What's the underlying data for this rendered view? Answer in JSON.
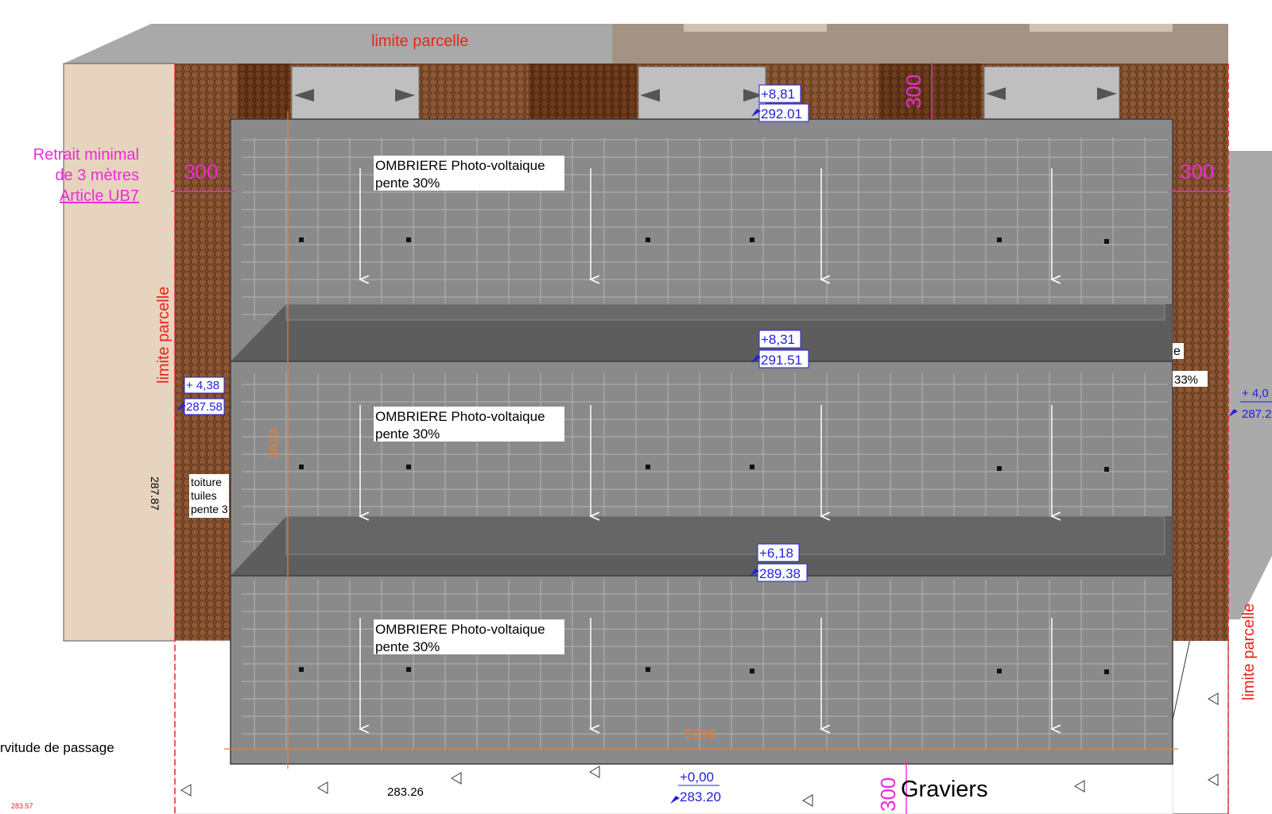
{
  "labels": {
    "limite_parcelle_top": "limite parcelle",
    "limite_parcelle_left": "limite parcelle",
    "limite_parcelle_right": "limite parcelle",
    "retrait_line1": "Retrait minimal",
    "retrait_line2": "de 3 mètres",
    "retrait_line3": "Article UB7",
    "toiture_line1": "toiture",
    "toiture_line2": "tuiles",
    "toiture_line3": "pente 3",
    "servitude": "rvitude de passage",
    "graviers": "Graviers",
    "elev_287_87": "287.87",
    "elev_283_26": "283.26",
    "elev_283_57": "283.57",
    "partial_e": "e",
    "partial_33": "33%"
  },
  "panels": [
    {
      "title": "OMBRIERE Photo-voltaique",
      "slope": "pente 30%"
    },
    {
      "title": "OMBRIERE Photo-voltaique",
      "slope": "pente 30%"
    },
    {
      "title": "OMBRIERE Photo-voltaique",
      "slope": "pente 30%"
    }
  ],
  "elevations": {
    "e1": {
      "top": "+8,81",
      "bottom": "292.01"
    },
    "e2": {
      "top": "+8,31",
      "bottom": "291.51"
    },
    "e3": {
      "top": "+6,18",
      "bottom": "289.38"
    },
    "e4": {
      "top": "+0,00",
      "bottom": "283.20"
    },
    "e5": {
      "top": "+ 4,38",
      "bottom": "287.58"
    },
    "e6": {
      "top": "+ 4,0",
      "bottom": "287.2"
    }
  },
  "dimensions": {
    "setback_left": "300",
    "setback_right": "300",
    "setback_top": "300",
    "setback_bottom": "300",
    "total_height": "3619",
    "total_width": "5296"
  },
  "colors": {
    "limit": "#e8251d",
    "setback": "#ee2bd8",
    "elevation": "#2222dd",
    "dimension": "#f07a2a",
    "panel": "#8a8a8a",
    "panel_dark": "#5d5d5d",
    "roof_tiles": "#7a4a2a",
    "neighbour_wall": "#e6d4be",
    "neighbour_roof": "#a0948a"
  }
}
